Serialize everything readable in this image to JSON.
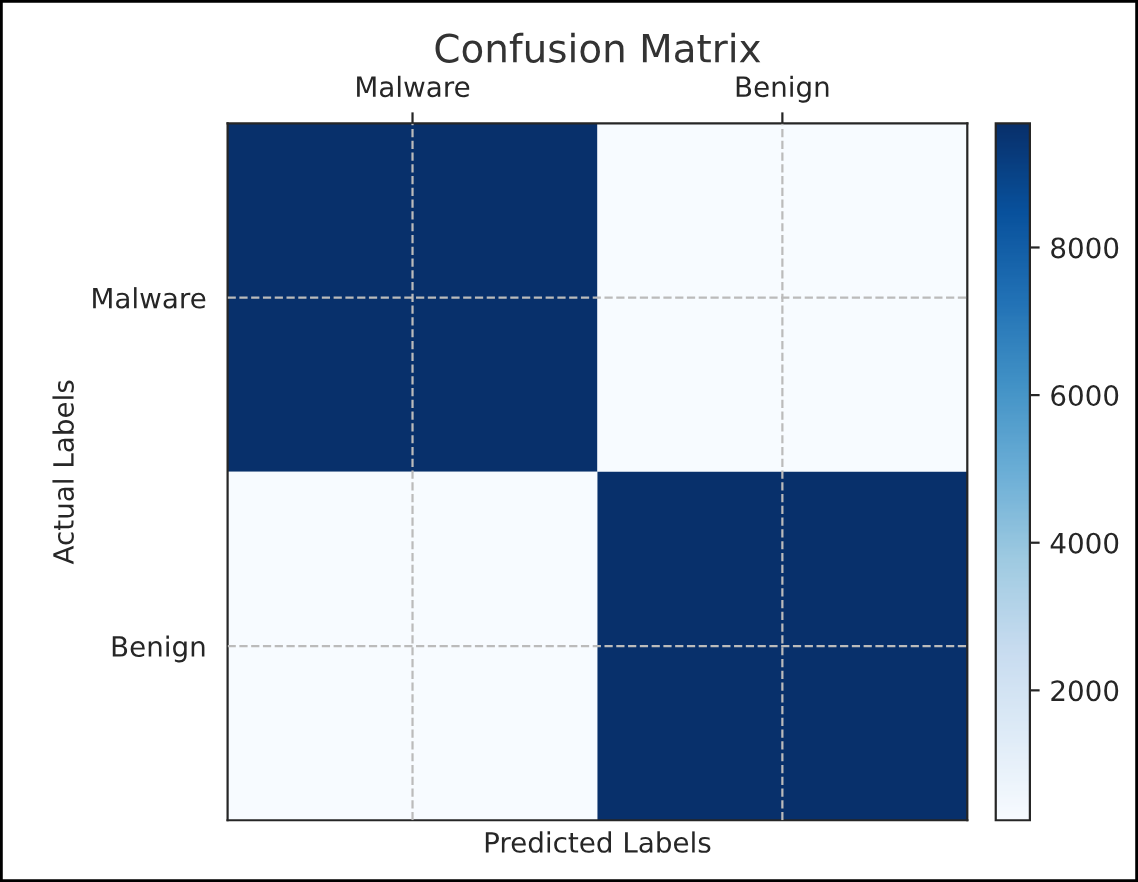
{
  "chart_data": {
    "type": "heatmap",
    "title": "Confusion Matrix",
    "xlabel": "Predicted Labels",
    "ylabel": "Actual Labels",
    "categories": [
      "Malware",
      "Benign"
    ],
    "y_categories": [
      "Malware",
      "Benign"
    ],
    "cells": [
      [
        9680,
        240
      ],
      [
        240,
        9680
      ]
    ],
    "clim": [
      240,
      9680
    ],
    "cticks": [
      2000,
      4000,
      6000,
      8000
    ],
    "grid": true
  }
}
